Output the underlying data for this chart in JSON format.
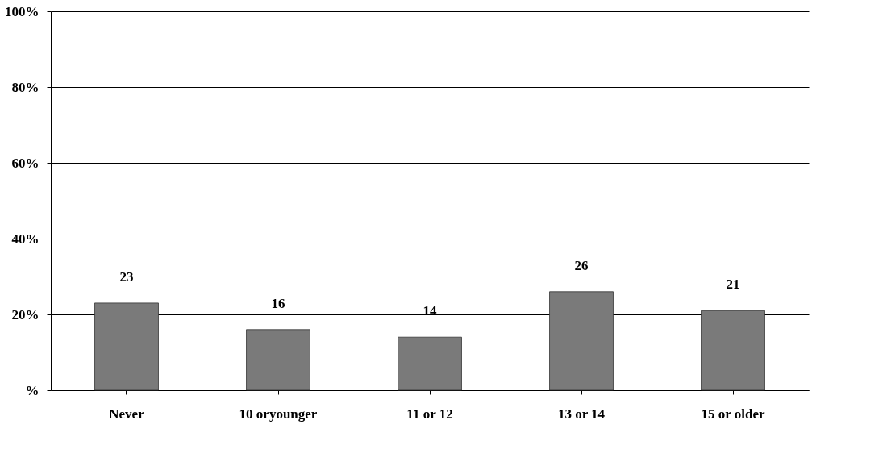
{
  "chart_data": {
    "type": "bar",
    "categories": [
      "Never",
      "10 oryounger",
      "11 or 12",
      "13 or 14",
      "15 or older"
    ],
    "values": [
      23,
      16,
      14,
      26,
      21
    ],
    "color": "#7a7a7a",
    "ylim": [
      0,
      100
    ],
    "yticks": [
      {
        "value": 0,
        "label": "%"
      },
      {
        "value": 20,
        "label": "20%"
      },
      {
        "value": 40,
        "label": "40%"
      },
      {
        "value": 60,
        "label": "60%"
      },
      {
        "value": 80,
        "label": "80%"
      },
      {
        "value": 100,
        "label": "100%"
      }
    ],
    "grid": "y",
    "data_labels": true
  }
}
